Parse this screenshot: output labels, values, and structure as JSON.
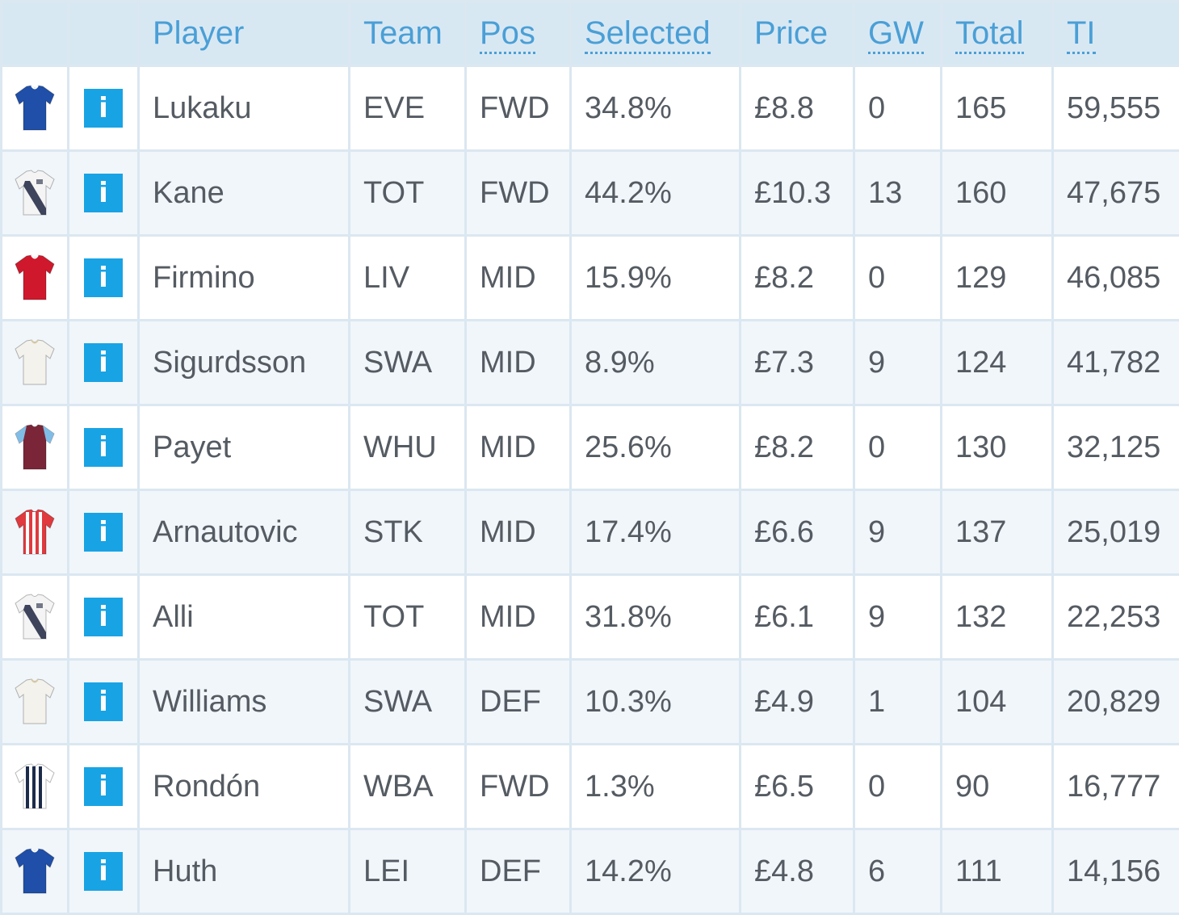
{
  "columns": [
    {
      "key": "shirt",
      "label": "",
      "sortable": false
    },
    {
      "key": "info",
      "label": "",
      "sortable": false
    },
    {
      "key": "player",
      "label": "Player",
      "sortable": false
    },
    {
      "key": "team",
      "label": "Team",
      "sortable": false
    },
    {
      "key": "pos",
      "label": "Pos",
      "sortable": true
    },
    {
      "key": "selected",
      "label": "Selected",
      "sortable": true
    },
    {
      "key": "price",
      "label": "Price",
      "sortable": false
    },
    {
      "key": "gw",
      "label": "GW",
      "sortable": true
    },
    {
      "key": "total",
      "label": "Total",
      "sortable": true
    },
    {
      "key": "ti",
      "label": "TI",
      "sortable": true
    }
  ],
  "info_label": "i",
  "colors": {
    "header_bg": "#d8e8f3",
    "header_text": "#4a9fd6",
    "row_alt_bg": "#f1f6fb",
    "info_button": "#18a3e4",
    "body_text": "#555b62"
  },
  "rows": [
    {
      "shirt": {
        "icon": "everton-shirt-icon",
        "body": "#1f4fa8",
        "trim": "#ffffff",
        "style": "plain"
      },
      "player": "Lukaku",
      "team": "EVE",
      "pos": "FWD",
      "selected": "34.8%",
      "price": "£8.8",
      "gw": "0",
      "total": "165",
      "ti": "59,555"
    },
    {
      "shirt": {
        "icon": "tottenham-shirt-icon",
        "body": "#f4f4f4",
        "trim": "#1c2540",
        "style": "sash"
      },
      "player": "Kane",
      "team": "TOT",
      "pos": "FWD",
      "selected": "44.2%",
      "price": "£10.3",
      "gw": "13",
      "total": "160",
      "ti": "47,675"
    },
    {
      "shirt": {
        "icon": "liverpool-shirt-icon",
        "body": "#d0182c",
        "trim": "#ffffff",
        "style": "plain"
      },
      "player": "Firmino",
      "team": "LIV",
      "pos": "MID",
      "selected": "15.9%",
      "price": "£8.2",
      "gw": "0",
      "total": "129",
      "ti": "46,085"
    },
    {
      "shirt": {
        "icon": "swansea-shirt-icon",
        "body": "#f4f2ec",
        "trim": "#d7c9a5",
        "style": "plain"
      },
      "player": "Sigurdsson",
      "team": "SWA",
      "pos": "MID",
      "selected": "8.9%",
      "price": "£7.3",
      "gw": "9",
      "total": "124",
      "ti": "41,782"
    },
    {
      "shirt": {
        "icon": "west-ham-shirt-icon",
        "body": "#7a2638",
        "trim": "#7fbde6",
        "style": "sleeves"
      },
      "player": "Payet",
      "team": "WHU",
      "pos": "MID",
      "selected": "25.6%",
      "price": "£8.2",
      "gw": "0",
      "total": "130",
      "ti": "32,125"
    },
    {
      "shirt": {
        "icon": "stoke-shirt-icon",
        "body": "#e03a3e",
        "trim": "#ffffff",
        "style": "stripes"
      },
      "player": "Arnautovic",
      "team": "STK",
      "pos": "MID",
      "selected": "17.4%",
      "price": "£6.6",
      "gw": "9",
      "total": "137",
      "ti": "25,019"
    },
    {
      "shirt": {
        "icon": "tottenham-shirt-icon",
        "body": "#f4f4f4",
        "trim": "#1c2540",
        "style": "sash"
      },
      "player": "Alli",
      "team": "TOT",
      "pos": "MID",
      "selected": "31.8%",
      "price": "£6.1",
      "gw": "9",
      "total": "132",
      "ti": "22,253"
    },
    {
      "shirt": {
        "icon": "swansea-shirt-icon",
        "body": "#f4f2ec",
        "trim": "#d7c9a5",
        "style": "plain"
      },
      "player": "Williams",
      "team": "SWA",
      "pos": "DEF",
      "selected": "10.3%",
      "price": "£4.9",
      "gw": "1",
      "total": "104",
      "ti": "20,829"
    },
    {
      "shirt": {
        "icon": "west-brom-shirt-icon",
        "body": "#ffffff",
        "trim": "#1c2b4a",
        "style": "stripes"
      },
      "player": "Rondón",
      "team": "WBA",
      "pos": "FWD",
      "selected": "1.3%",
      "price": "£6.5",
      "gw": "0",
      "total": "90",
      "ti": "16,777"
    },
    {
      "shirt": {
        "icon": "leicester-shirt-icon",
        "body": "#1f4fa8",
        "trim": "#ffffff",
        "style": "plain"
      },
      "player": "Huth",
      "team": "LEI",
      "pos": "DEF",
      "selected": "14.2%",
      "price": "£4.8",
      "gw": "6",
      "total": "111",
      "ti": "14,156"
    }
  ]
}
